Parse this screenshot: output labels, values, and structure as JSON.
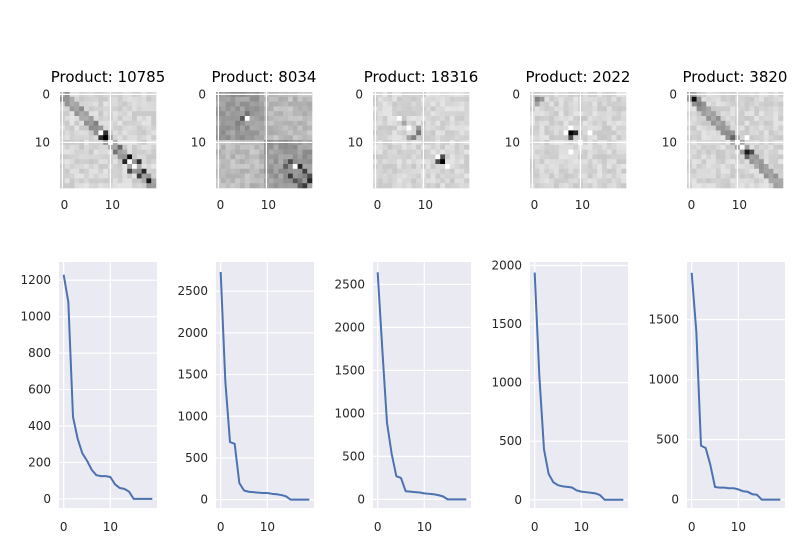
{
  "style": {
    "plot_bg": "#eaeaf2",
    "grid": "#ffffff",
    "line": "#4c72b0"
  },
  "chart_data": [
    {
      "type": "heatmap",
      "title": "Product: 10785",
      "rows": 20,
      "cols": 20,
      "xticks": [
        0,
        10
      ],
      "yticks": [
        0,
        10
      ],
      "pattern": "diagonal",
      "hot": [
        [
          9,
          9,
          1.0
        ],
        [
          8,
          9,
          0.8
        ],
        [
          9,
          8,
          0.8
        ],
        [
          13,
          14,
          0.95
        ],
        [
          14,
          16,
          0.8
        ],
        [
          16,
          17,
          0.85
        ],
        [
          18,
          18,
          0.9
        ],
        [
          6,
          7,
          0.5
        ],
        [
          3,
          4,
          0.45
        ],
        [
          11,
          12,
          0.6
        ]
      ],
      "bright": [
        [
          8,
          8
        ],
        [
          10,
          10
        ],
        [
          15,
          15
        ],
        [
          14,
          14
        ]
      ]
    },
    {
      "type": "heatmap",
      "title": "Product: 8034",
      "rows": 20,
      "cols": 20,
      "xticks": [
        0,
        10
      ],
      "yticks": [
        0,
        10
      ],
      "pattern": "blocky",
      "hot": [
        [
          5,
          5,
          0.65
        ],
        [
          4,
          6,
          0.55
        ],
        [
          6,
          4,
          0.5
        ],
        [
          14,
          15,
          0.7
        ],
        [
          15,
          17,
          0.85
        ],
        [
          16,
          18,
          0.75
        ],
        [
          18,
          19,
          0.85
        ],
        [
          17,
          19,
          0.7
        ],
        [
          18,
          17,
          0.55
        ]
      ],
      "bright": [
        [
          5,
          6
        ],
        [
          15,
          16
        ]
      ]
    },
    {
      "type": "heatmap",
      "title": "Product: 18316",
      "rows": 20,
      "cols": 20,
      "xticks": [
        0,
        10
      ],
      "yticks": [
        0,
        10
      ],
      "pattern": "light",
      "hot": [
        [
          14,
          14,
          1.0
        ],
        [
          13,
          14,
          0.7
        ],
        [
          14,
          13,
          0.7
        ],
        [
          8,
          9,
          0.55
        ],
        [
          7,
          9,
          0.4
        ],
        [
          6,
          6,
          0.35
        ]
      ],
      "bright": [
        [
          5,
          5
        ],
        [
          7,
          7
        ],
        [
          13,
          13
        ],
        [
          15,
          15
        ]
      ]
    },
    {
      "type": "heatmap",
      "title": "Product: 2022",
      "rows": 20,
      "cols": 20,
      "xticks": [
        0,
        10
      ],
      "yticks": [
        0,
        10
      ],
      "pattern": "light",
      "hot": [
        [
          8,
          8,
          1.0
        ],
        [
          8,
          9,
          0.85
        ],
        [
          9,
          8,
          0.7
        ],
        [
          1,
          1,
          0.5
        ],
        [
          1,
          2,
          0.4
        ]
      ],
      "bright": [
        [
          8,
          7
        ],
        [
          7,
          8
        ],
        [
          8,
          12
        ],
        [
          12,
          8
        ],
        [
          10,
          10
        ]
      ]
    },
    {
      "type": "heatmap",
      "title": "Product: 3820",
      "rows": 20,
      "cols": 20,
      "xticks": [
        0,
        10
      ],
      "yticks": [
        0,
        10
      ],
      "pattern": "diagonal",
      "hot": [
        [
          1,
          1,
          0.95
        ],
        [
          2,
          2,
          0.5
        ],
        [
          9,
          9,
          0.6
        ],
        [
          12,
          12,
          0.9
        ],
        [
          12,
          13,
          0.7
        ],
        [
          13,
          12,
          0.6
        ],
        [
          8,
          8,
          0.45
        ]
      ],
      "bright": [
        [
          10,
          10
        ],
        [
          11,
          11
        ],
        [
          9,
          12
        ]
      ]
    },
    {
      "type": "line",
      "x": [
        0,
        1,
        2,
        3,
        4,
        5,
        6,
        7,
        8,
        9,
        10,
        11,
        12,
        13,
        14,
        15,
        16,
        17,
        18,
        19
      ],
      "y": [
        1230,
        1080,
        450,
        330,
        250,
        210,
        160,
        130,
        125,
        125,
        120,
        80,
        60,
        55,
        40,
        0,
        0,
        0,
        0,
        0
      ],
      "xticks": [
        0,
        10
      ],
      "yticks": [
        0,
        200,
        400,
        600,
        800,
        1000,
        1200
      ],
      "ylim": [
        -50,
        1300
      ]
    },
    {
      "type": "line",
      "x": [
        0,
        1,
        2,
        3,
        4,
        5,
        6,
        7,
        8,
        9,
        10,
        11,
        12,
        13,
        14,
        15,
        16,
        17,
        18,
        19
      ],
      "y": [
        2730,
        1420,
        690,
        670,
        200,
        110,
        95,
        90,
        85,
        80,
        80,
        70,
        65,
        55,
        40,
        0,
        0,
        0,
        0,
        0
      ],
      "xticks": [
        0,
        10
      ],
      "yticks": [
        0,
        500,
        1000,
        1500,
        2000,
        2500
      ],
      "ylim": [
        -100,
        2850
      ]
    },
    {
      "type": "line",
      "x": [
        0,
        1,
        2,
        3,
        4,
        5,
        6,
        7,
        8,
        9,
        10,
        11,
        12,
        13,
        14,
        15,
        16,
        17,
        18,
        19
      ],
      "y": [
        2640,
        1740,
        890,
        530,
        270,
        250,
        95,
        90,
        85,
        80,
        70,
        65,
        60,
        50,
        35,
        0,
        0,
        0,
        0,
        0
      ],
      "xticks": [
        0,
        10
      ],
      "yticks": [
        0,
        500,
        1000,
        1500,
        2000,
        2500
      ],
      "ylim": [
        -100,
        2760
      ]
    },
    {
      "type": "line",
      "x": [
        0,
        1,
        2,
        3,
        4,
        5,
        6,
        7,
        8,
        9,
        10,
        11,
        12,
        13,
        14,
        15,
        16,
        17,
        18,
        19
      ],
      "y": [
        1940,
        1060,
        430,
        220,
        150,
        125,
        115,
        110,
        105,
        80,
        70,
        65,
        60,
        55,
        40,
        0,
        0,
        0,
        0,
        0
      ],
      "xticks": [
        0,
        10
      ],
      "yticks": [
        0,
        500,
        1000,
        1500,
        2000
      ],
      "ylim": [
        -70,
        2030
      ]
    },
    {
      "type": "line",
      "x": [
        0,
        1,
        2,
        3,
        4,
        5,
        6,
        7,
        8,
        9,
        10,
        11,
        12,
        13,
        14,
        15,
        16,
        17,
        18,
        19
      ],
      "y": [
        1890,
        1400,
        450,
        430,
        290,
        105,
        100,
        100,
        95,
        95,
        85,
        70,
        65,
        45,
        40,
        0,
        0,
        0,
        0,
        0
      ],
      "xticks": [
        0,
        10
      ],
      "yticks": [
        0,
        500,
        1000,
        1500
      ],
      "ylim": [
        -70,
        1980
      ]
    }
  ]
}
